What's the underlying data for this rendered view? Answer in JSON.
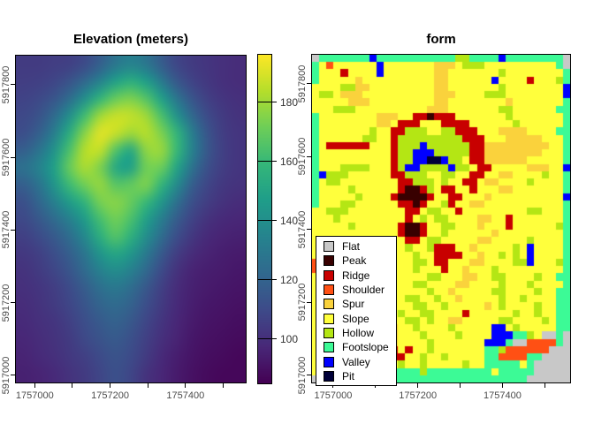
{
  "figure": {
    "background": "#ffffff",
    "tick_label_color": "#4a4a4a",
    "title_color": "#000000",
    "border_color": "#000000"
  },
  "chart_data": [
    {
      "type": "heatmap",
      "title": "Elevation (meters)",
      "xlabel": "",
      "ylabel": "",
      "xlim": [
        1756950,
        1757560
      ],
      "ylim": [
        5916980,
        5917880
      ],
      "x_tick_values": [
        1757000,
        1757100,
        1757200,
        1757300,
        1757400,
        1757500
      ],
      "x_tick_labels": [
        "1757000",
        "1757200",
        "1757400"
      ],
      "x_tick_label_values": [
        1757000,
        1757200,
        1757400
      ],
      "y_tick_values": [
        5917000,
        5917200,
        5917400,
        5917600,
        5917800
      ],
      "y_tick_labels": [
        "5917000",
        "5917200",
        "5917400",
        "5917600",
        "5917800"
      ],
      "grid": false,
      "colormap": "viridis",
      "colormap_stops": [
        [
          0.0,
          "#440154"
        ],
        [
          0.11,
          "#482878"
        ],
        [
          0.22,
          "#3e4a89"
        ],
        [
          0.33,
          "#31688e"
        ],
        [
          0.44,
          "#26828e"
        ],
        [
          0.56,
          "#1f9e89"
        ],
        [
          0.67,
          "#35b779"
        ],
        [
          0.78,
          "#6ece58"
        ],
        [
          0.89,
          "#b5de2b"
        ],
        [
          1.0,
          "#fde725"
        ]
      ],
      "colorbar": {
        "position": "right",
        "vmin": 85,
        "vmax": 196,
        "tick_values": [
          100,
          120,
          140,
          160,
          180
        ],
        "tick_labels": [
          "100",
          "120",
          "140",
          "160",
          "180"
        ]
      },
      "values_unit": "meters",
      "values": [
        [
          104,
          104,
          105,
          106,
          110,
          118,
          128,
          134,
          128,
          117,
          108,
          104,
          102,
          100,
          99
        ],
        [
          105,
          106,
          108,
          113,
          122,
          134,
          148,
          155,
          147,
          130,
          115,
          107,
          103,
          100,
          99
        ],
        [
          107,
          109,
          114,
          124,
          140,
          158,
          170,
          174,
          166,
          148,
          128,
          114,
          106,
          102,
          100
        ],
        [
          109,
          113,
          123,
          140,
          162,
          180,
          187,
          186,
          180,
          164,
          142,
          122,
          110,
          104,
          101
        ],
        [
          111,
          118,
          132,
          154,
          176,
          191,
          187,
          180,
          184,
          174,
          158,
          132,
          114,
          105,
          102
        ],
        [
          118,
          127,
          142,
          164,
          184,
          186,
          166,
          152,
          177,
          179,
          160,
          134,
          115,
          106,
          102
        ],
        [
          126,
          134,
          148,
          170,
          182,
          174,
          152,
          148,
          172,
          171,
          150,
          127,
          112,
          105,
          102
        ],
        [
          118,
          127,
          143,
          161,
          172,
          178,
          167,
          169,
          174,
          158,
          138,
          118,
          108,
          103,
          101
        ],
        [
          112,
          121,
          133,
          146,
          158,
          173,
          176,
          170,
          160,
          144,
          126,
          112,
          105,
          101,
          99
        ],
        [
          109,
          115,
          123,
          133,
          146,
          163,
          172,
          164,
          148,
          132,
          117,
          107,
          101,
          98,
          97
        ],
        [
          106,
          110,
          116,
          124,
          137,
          155,
          166,
          156,
          140,
          124,
          111,
          103,
          98,
          96,
          95
        ],
        [
          103,
          106,
          111,
          118,
          128,
          143,
          151,
          144,
          130,
          116,
          105,
          99,
          96,
          94,
          93
        ],
        [
          101,
          104,
          108,
          114,
          123,
          133,
          139,
          133,
          122,
          110,
          101,
          96,
          94,
          93,
          92
        ],
        [
          100,
          102,
          105,
          110,
          117,
          125,
          129,
          124,
          115,
          106,
          99,
          95,
          93,
          92,
          91
        ],
        [
          99,
          101,
          104,
          108,
          114,
          120,
          123,
          119,
          111,
          104,
          98,
          94,
          92,
          91,
          90
        ],
        [
          98,
          100,
          102,
          106,
          111,
          116,
          119,
          115,
          108,
          102,
          97,
          93,
          91,
          90,
          89
        ],
        [
          97,
          99,
          101,
          104,
          109,
          113,
          116,
          112,
          106,
          100,
          96,
          92,
          90,
          89,
          88
        ],
        [
          96,
          98,
          100,
          103,
          106,
          110,
          113,
          110,
          104,
          98,
          94,
          91,
          89,
          88,
          87
        ],
        [
          95,
          96,
          98,
          101,
          104,
          108,
          112,
          108,
          101,
          97,
          93,
          90,
          88,
          87,
          87
        ]
      ]
    },
    {
      "type": "heatmap",
      "title": "form",
      "xlabel": "",
      "ylabel": "",
      "xlim": [
        1756950,
        1757560
      ],
      "ylim": [
        5916980,
        5917880
      ],
      "x_tick_values": [
        1757000,
        1757100,
        1757200,
        1757300,
        1757400,
        1757500
      ],
      "x_tick_labels": [
        "1757000",
        "1757200",
        "1757400"
      ],
      "x_tick_label_values": [
        1757000,
        1757200,
        1757400
      ],
      "y_tick_values": [
        5917000,
        5917200,
        5917400,
        5917600,
        5917800
      ],
      "y_tick_labels": [
        "5917000",
        "5917200",
        "5917400",
        "5917600",
        "5917800"
      ],
      "grid": false,
      "legend_position": "bottomleft",
      "categories": [
        {
          "label": "Flat",
          "code": "F",
          "color": "#C8C8C8"
        },
        {
          "label": "Peak",
          "code": "P",
          "color": "#380000"
        },
        {
          "label": "Ridge",
          "code": "R",
          "color": "#C80000"
        },
        {
          "label": "Shoulder",
          "code": "O",
          "color": "#FF5014"
        },
        {
          "label": "Spur",
          "code": "S",
          "color": "#FAD23C"
        },
        {
          "label": "Slope",
          "code": "Y",
          "color": "#FFFF3C"
        },
        {
          "label": "Hollow",
          "code": "G",
          "color": "#B4E614"
        },
        {
          "label": "Footslope",
          "code": "T",
          "color": "#3CFA96"
        },
        {
          "label": "Valley",
          "code": "V",
          "color": "#0000FF"
        },
        {
          "label": "Pit",
          "code": "I",
          "color": "#000038"
        }
      ],
      "codes": [
        "FTTTTTTTVTTTTTTTTTTTGGTTTTVTTTTTTTTF",
        "TYOYYYYYYVYYYYYYYSSSYGGGYYYYYYYYYYTF",
        "TYYYRYYYYVYYYYYYYSSYYYYYYYGYYYYYYYYT",
        "TYYYYYSYYYYYYYYYYSSYYYYYYVYYYYRYYYGT",
        "YYYYGGSSYYYYYYYYYSSYYYYYYYGYYYYYYYYV",
        "YGGYSSSYYYYYYYYYYSSSYYYYGGGYYYYYYYYV",
        "YYYYYSSSYYYYYYYYYSSYYYYYYYYSYYYYYYYT",
        "YYYGGGYYYYYYYYYYSSSYYYYYYYGGYYYYYYTT",
        "TYYYYYYYYSSSYYRRPRRRYYYYYYYGYYYYYYYT",
        "TYYYYYYYYSSYRRRYYYRRRRYYYYYYGYYYYYYT",
        "TYYYYYYYGYYRRGGGYYGGRRRYYYSSSSYYYYTT",
        "TYYYYYYGGYYRGGGGGGGGGRRRYYYSSSSSYYYT",
        "TYRRRRRRYYYRGGGVGGGGGGRRSSSSSSSSSYYT",
        "TYYYYYYYYYYRGGVVVGGGGGRRSSSSSSSSYYYT",
        "TYYYYYYYYYYRGGVVIIVGGYRRSSSSSSYYYYYT",
        "TYYYGGGGYYYRGVVGGGGVGGYRRYYYYYSSSYYV",
        "TVGGGYYYYYYRRGGGYYGGYYRRYYSSYYYYGYYT",
        "TYGGYYYYYYYYRRGGGYGYYRRYSSYYYYGYYYYT",
        "TYYYYGYYYYYYRPPRGYRRYYRYYYSSYYYYYYYT",
        "TYYYYYGYYYYRPPPPRYYRRYYYSYYYYYYYYYYV",
        "TYYYGGYYYYYYRRPRYYGRYYSSYYYYYYYYYYYT",
        "YYGGGYYYYYYYYRRYGGYYRYYYYYYYYYGGYYYT",
        "YYYGYYYYYYYYYRYGYGGYYYYSSYYRYYYYYYYT",
        "YYYYYGYYYYYYRPPRYYGGYYYSYYYRYYYYYYGT",
        "YYYYYYYYYYYYRPPRYYGYYYYYYSYYYYYYYYYT",
        "YYYYYYYYYYYYYRRYGGYYYYYSSYYYYYGYYYYT",
        "YYYYYYYYYYYYYGYYGRRRYYSYYYYYGYVYYYYT",
        "YYYYYYYYYYYYYYGYYRRRRYYSYYGYGYVYYYYT",
        "OYYYYYYYYYYYYYGGYRRYYYSSYYYYGGVYYYGT",
        "OYYYYYYYYYYYYYGYYYRYYSYYYGYYYYYYYYYT",
        "YYYYYYYYYYYYYYYYGGYYYSSYYGGYYYYGYYTT",
        "YYYYYYYYYYYYYYGGYYYYSSYYYYGYYYGYYYYT",
        "YYYYYYYYYYYYYYYYGYYSYYYYYGGYYYYGYYTT",
        "YYYYYYYYYYYYYGGYYGYYSYYYYYGYYGYYYYTT",
        "YYYYYYYYYYYYYYGGYYGYYYYYSYGYYYYGYYTT",
        "YYYYYYYYYYYYGYYGGYYYYRYYYYYYGYYGYYTT",
        "YYYYYYYYYYYYYGGYGYYSSYYYYYGGYYYYGYTT",
        "YYYYYYYYSSYSYYGYYYYGYYYYYVVYGYYYYYTT",
        "YYYYYYYYSYSSYYYGYYYYGYYYYVVVTTGYFFTF",
        "YYYYYYYYRRYSYYYYGYYYYYYYVVVTFFOOOOTF",
        "YYYYYYYYRPRRYRYYGYYYYYYYTTGOOOOOOFFF",
        "YYYYYYYYRRYRRYYGYYGYYYYYTTOOOOTTFFFF",
        "YYYYYYYYYRYYGYYGYYYYYGYYTTTTTYTFFFFF",
        "YYTYTTTTTYTTTTTGTTTTTTTTTYTTTTTFFFFF",
        "FTTTTTTTTTTTTTTTTTTTTTTTTTTTTTFFFFFF"
      ]
    }
  ]
}
